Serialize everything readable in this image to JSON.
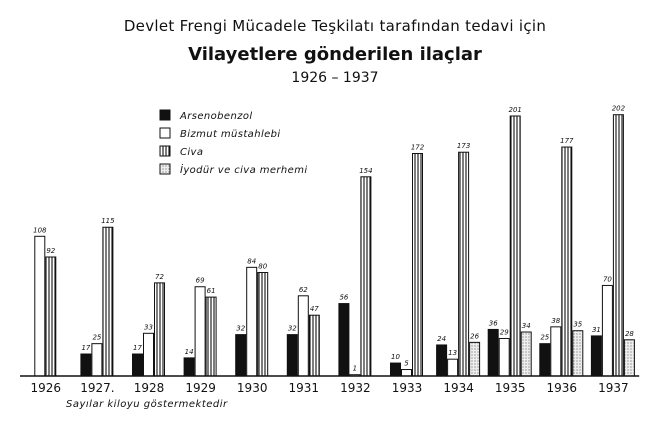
{
  "header": {
    "title_line1": "Devlet Frengi Mücadele Teşkilatı tarafından tedavi için",
    "title_line2": "Vilayetlere gönderilen ilaçlar",
    "title_line3": "1926 – 1937"
  },
  "note": "Sayılar kiloyu göstermektedir",
  "chart_data": {
    "type": "bar",
    "title": "Vilayetlere gönderilen ilaçlar",
    "subtitle": "Devlet Frengi Mücadele Teşkilatı tarafından tedavi için — 1926 – 1937",
    "categories": [
      "1926",
      "1927.",
      "1928",
      "1929",
      "1930",
      "1931",
      "1932",
      "1933",
      "1934",
      "1935",
      "1936",
      "1937"
    ],
    "series": [
      {
        "name": "Arsenobenzol",
        "fill": "solid",
        "color": "#111111",
        "values": [
          null,
          17,
          17,
          14,
          32,
          32,
          56,
          10,
          24,
          36,
          25,
          31
        ]
      },
      {
        "name": "Bizmut müstahlebi",
        "fill": "open",
        "color": "#ffffff",
        "values": [
          108,
          25,
          33,
          69,
          84,
          62,
          1,
          5,
          13,
          29,
          38,
          70
        ]
      },
      {
        "name": "Civa",
        "fill": "vertical-lines",
        "color": "#ffffff",
        "values": [
          92,
          115,
          72,
          61,
          80,
          47,
          154,
          172,
          173,
          201,
          177,
          202
        ]
      },
      {
        "name": "İyodür ve civa merhemi",
        "fill": "dotted",
        "color": "#e8e8e8",
        "values": [
          null,
          null,
          null,
          null,
          null,
          null,
          null,
          null,
          26,
          34,
          35,
          28
        ]
      }
    ],
    "xlabel": "",
    "ylabel": "",
    "ylim": [
      0,
      210
    ],
    "grid": false,
    "legend_position": "top-left"
  }
}
